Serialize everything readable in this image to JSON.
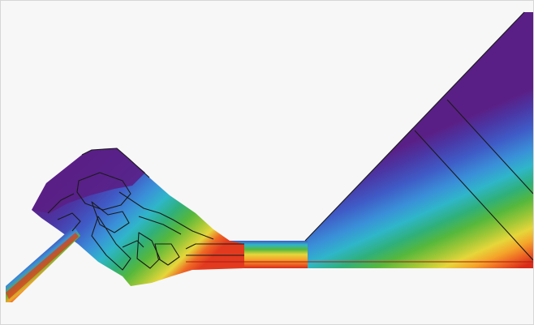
{
  "figure": {
    "background": "#f7f7f8",
    "border_color": "#d6d6d6",
    "outline_color": "#1a1a1a",
    "palette": [
      "#5a1f86",
      "#4a37a5",
      "#3f5bc6",
      "#3a8fd8",
      "#2fb6c9",
      "#2fb07a",
      "#56b83c",
      "#a0c736",
      "#e6d63a",
      "#f4a52a",
      "#ee6a24",
      "#e23a1f",
      "#d82b1a"
    ]
  }
}
